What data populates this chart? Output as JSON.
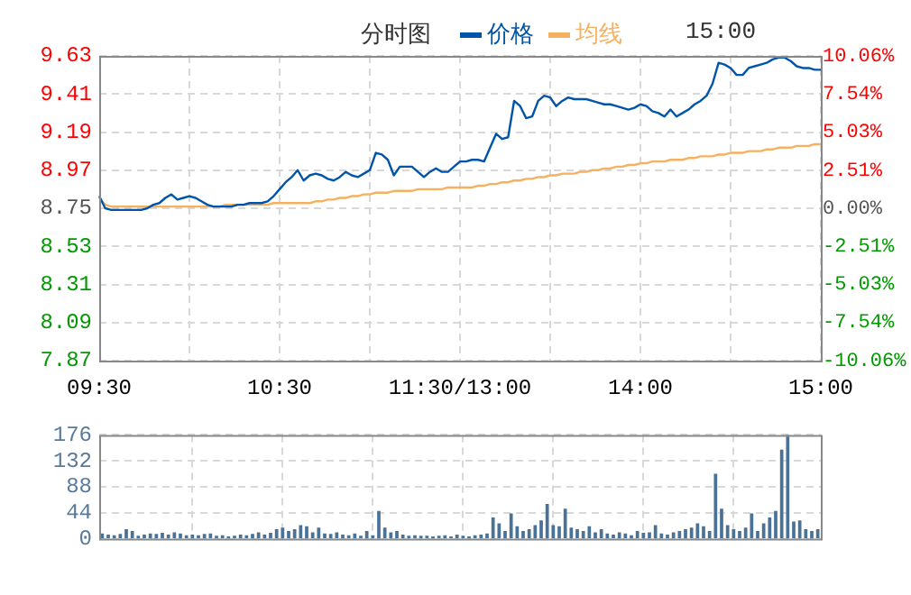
{
  "chart_data": [
    {
      "type": "line",
      "title": "分时图",
      "annotations": [
        "15:00"
      ],
      "legend": "top",
      "grid": true,
      "categories": [
        "09:30",
        null,
        null,
        null,
        null,
        null,
        null,
        null,
        null,
        null,
        null,
        null,
        null,
        null,
        null,
        null,
        null,
        null,
        null,
        null,
        null,
        null,
        null,
        null,
        null,
        null,
        null,
        null,
        null,
        null,
        "10:30",
        null,
        null,
        null,
        null,
        null,
        null,
        null,
        null,
        null,
        null,
        null,
        null,
        null,
        null,
        null,
        null,
        null,
        null,
        null,
        null,
        null,
        null,
        null,
        null,
        null,
        null,
        null,
        null,
        null,
        "11:30/13:00",
        null,
        null,
        null,
        null,
        null,
        null,
        null,
        null,
        null,
        null,
        null,
        null,
        null,
        null,
        null,
        null,
        null,
        null,
        null,
        null,
        null,
        null,
        null,
        null,
        null,
        null,
        null,
        null,
        null,
        "14:00",
        null,
        null,
        null,
        null,
        null,
        null,
        null,
        null,
        null,
        null,
        null,
        null,
        null,
        null,
        null,
        null,
        null,
        null,
        null,
        null,
        null,
        null,
        null,
        null,
        null,
        null,
        null,
        null,
        null,
        "15:00"
      ],
      "ylim": [
        7.87,
        9.63
      ],
      "yticks": [
        7.87,
        8.09,
        8.31,
        8.53,
        8.75,
        8.97,
        9.19,
        9.41,
        9.63
      ],
      "y2lim": [
        -10.06,
        10.06
      ],
      "y2ticks": [
        {
          "value": -10.06,
          "label": "-10.06%"
        },
        {
          "value": -7.54,
          "label": "-7.54%"
        },
        {
          "value": -5.03,
          "label": "-5.03%"
        },
        {
          "value": -2.51,
          "label": "-2.51%"
        },
        {
          "value": 0,
          "label": "0.00%"
        },
        {
          "value": 2.51,
          "label": "2.51%"
        },
        {
          "value": 5.03,
          "label": "5.03%"
        },
        {
          "value": 7.54,
          "label": "7.54%"
        },
        {
          "value": 10.06,
          "label": "10.06%"
        }
      ],
      "series": [
        {
          "name": "价格",
          "color": "#0055aa",
          "values": [
            8.82,
            8.75,
            8.74,
            8.74,
            8.74,
            8.74,
            8.74,
            8.74,
            8.75,
            8.77,
            8.78,
            8.81,
            8.83,
            8.8,
            8.81,
            8.82,
            8.81,
            8.79,
            8.77,
            8.76,
            8.76,
            8.76,
            8.76,
            8.77,
            8.77,
            8.78,
            8.78,
            8.78,
            8.79,
            8.82,
            8.86,
            8.9,
            8.93,
            8.97,
            8.91,
            8.94,
            8.95,
            8.94,
            8.92,
            8.91,
            8.93,
            8.96,
            8.94,
            8.93,
            8.95,
            8.97,
            9.07,
            9.06,
            9.03,
            8.94,
            8.99,
            8.99,
            8.99,
            8.96,
            8.93,
            8.96,
            8.98,
            8.96,
            8.96,
            8.99,
            9.02,
            9.02,
            9.03,
            9.03,
            9.02,
            9.1,
            9.18,
            9.15,
            9.16,
            9.37,
            9.34,
            9.27,
            9.28,
            9.37,
            9.4,
            9.39,
            9.34,
            9.37,
            9.39,
            9.38,
            9.38,
            9.38,
            9.37,
            9.36,
            9.35,
            9.35,
            9.34,
            9.33,
            9.32,
            9.33,
            9.35,
            9.34,
            9.31,
            9.3,
            9.28,
            9.32,
            9.28,
            9.3,
            9.32,
            9.35,
            9.37,
            9.4,
            9.47,
            9.59,
            9.58,
            9.56,
            9.52,
            9.52,
            9.56,
            9.57,
            9.58,
            9.59,
            9.61,
            9.62,
            9.62,
            9.6,
            9.57,
            9.56,
            9.56,
            9.55,
            9.55
          ]
        },
        {
          "name": "均线",
          "color": "#f5b060",
          "values": [
            8.81,
            8.77,
            8.76,
            8.76,
            8.76,
            8.76,
            8.76,
            8.76,
            8.76,
            8.76,
            8.76,
            8.76,
            8.76,
            8.76,
            8.76,
            8.76,
            8.76,
            8.76,
            8.76,
            8.76,
            8.76,
            8.77,
            8.77,
            8.77,
            8.77,
            8.77,
            8.77,
            8.77,
            8.77,
            8.78,
            8.78,
            8.78,
            8.78,
            8.78,
            8.78,
            8.78,
            8.79,
            8.79,
            8.8,
            8.8,
            8.81,
            8.81,
            8.82,
            8.82,
            8.83,
            8.83,
            8.84,
            8.84,
            8.84,
            8.85,
            8.85,
            8.85,
            8.85,
            8.86,
            8.86,
            8.86,
            8.86,
            8.86,
            8.87,
            8.87,
            8.87,
            8.87,
            8.87,
            8.88,
            8.88,
            8.89,
            8.89,
            8.9,
            8.9,
            8.91,
            8.91,
            8.92,
            8.92,
            8.93,
            8.93,
            8.94,
            8.94,
            8.95,
            8.95,
            8.95,
            8.96,
            8.96,
            8.97,
            8.97,
            8.98,
            8.98,
            8.99,
            8.99,
            9.0,
            9.0,
            9.01,
            9.01,
            9.02,
            9.02,
            9.02,
            9.03,
            9.03,
            9.03,
            9.04,
            9.04,
            9.05,
            9.05,
            9.05,
            9.06,
            9.06,
            9.07,
            9.07,
            9.07,
            9.08,
            9.08,
            9.08,
            9.09,
            9.09,
            9.1,
            9.1,
            9.1,
            9.11,
            9.11,
            9.11,
            9.12,
            9.12
          ]
        }
      ]
    },
    {
      "type": "bar",
      "color": "#4a7196",
      "grid": true,
      "tick_labels": "y",
      "categories": [
        null,
        null,
        null,
        null,
        null,
        null,
        null,
        null,
        null,
        null,
        null,
        null,
        null,
        null,
        null,
        null,
        null,
        null,
        null,
        null,
        null,
        null,
        null,
        null,
        null,
        null,
        null,
        null,
        null,
        null,
        null,
        null,
        null,
        null,
        null,
        null,
        null,
        null,
        null,
        null,
        null,
        null,
        null,
        null,
        null,
        null,
        null,
        null,
        null,
        null,
        null,
        null,
        null,
        null,
        null,
        null,
        null,
        null,
        null,
        null,
        null,
        null,
        null,
        null,
        null,
        null,
        null,
        null,
        null,
        null,
        null,
        null,
        null,
        null,
        null,
        null,
        null,
        null,
        null,
        null,
        null,
        null,
        null,
        null,
        null,
        null,
        null,
        null,
        null,
        null,
        null,
        null,
        null,
        null,
        null,
        null,
        null,
        null,
        null,
        null,
        null,
        null,
        null,
        null,
        null,
        null,
        null,
        null,
        null,
        null,
        null,
        null,
        null,
        null,
        null,
        null,
        null,
        null,
        null,
        null
      ],
      "ylim": [
        0,
        176
      ],
      "yticks": [
        0,
        44,
        88,
        132,
        176
      ],
      "values": [
        8,
        6,
        5,
        7,
        15,
        12,
        4,
        6,
        8,
        7,
        9,
        6,
        10,
        8,
        5,
        6,
        5,
        7,
        8,
        4,
        5,
        3,
        4,
        6,
        5,
        7,
        10,
        6,
        9,
        15,
        18,
        12,
        15,
        22,
        20,
        10,
        18,
        8,
        7,
        10,
        6,
        5,
        8,
        4,
        12,
        5,
        46,
        18,
        10,
        12,
        6,
        4,
        5,
        4,
        4,
        3,
        4,
        5,
        3,
        6,
        4,
        3,
        5,
        6,
        8,
        35,
        25,
        12,
        42,
        20,
        12,
        15,
        22,
        30,
        58,
        22,
        20,
        50,
        18,
        15,
        12,
        20,
        10,
        15,
        8,
        6,
        10,
        8,
        5,
        12,
        9,
        10,
        22,
        8,
        6,
        10,
        12,
        15,
        18,
        25,
        20,
        12,
        109,
        50,
        22,
        15,
        12,
        18,
        42,
        12,
        25,
        35,
        46,
        150,
        176,
        28,
        30,
        15,
        12,
        15
      ]
    }
  ]
}
